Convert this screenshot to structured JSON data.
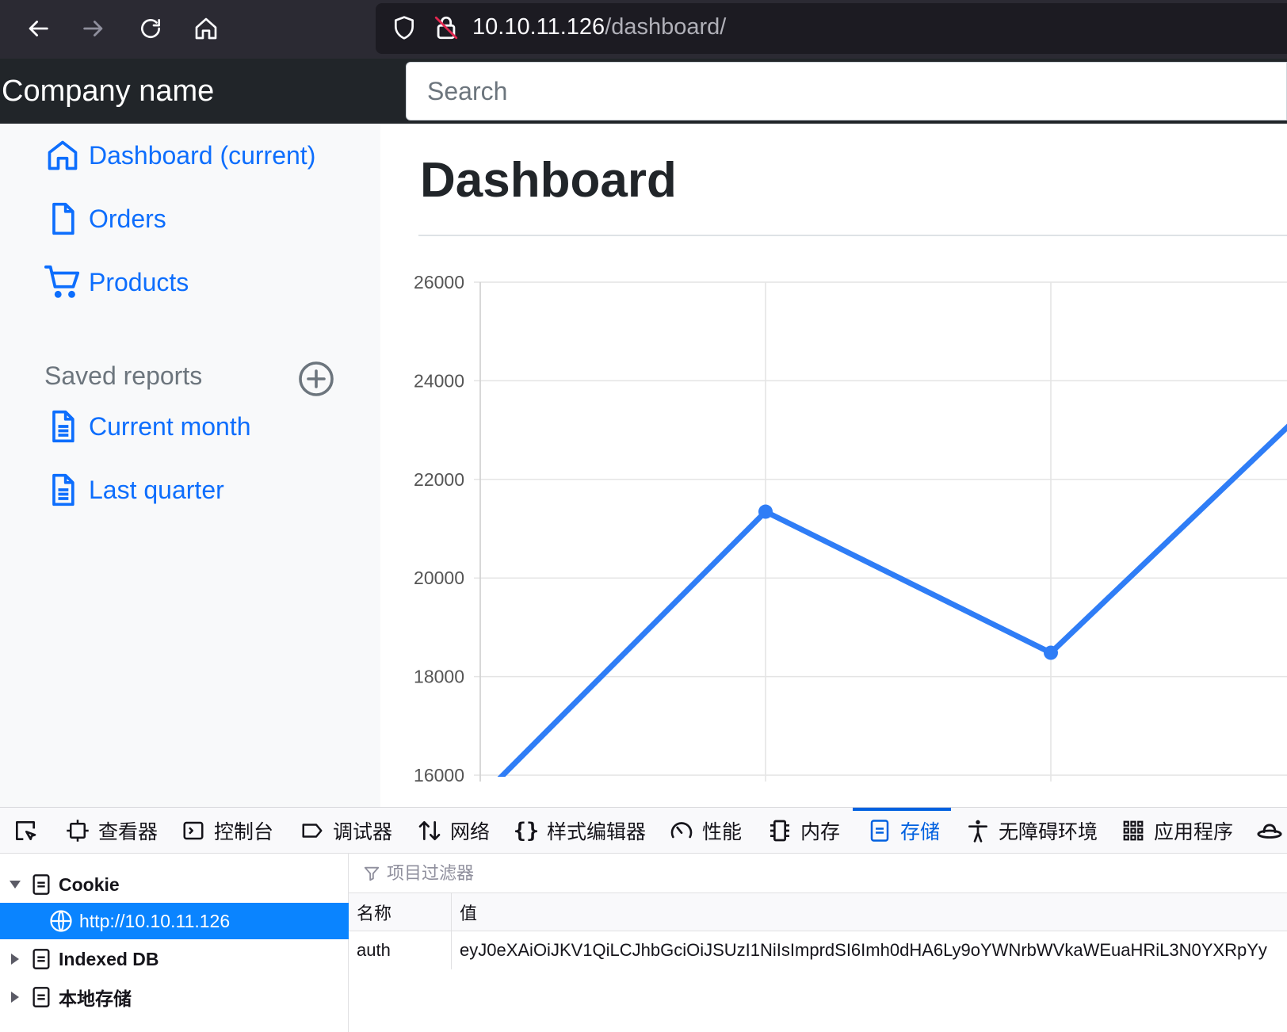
{
  "browser": {
    "url_host": "10.10.11.126",
    "url_path": "/dashboard/"
  },
  "header": {
    "brand": "Company name",
    "search_placeholder": "Search"
  },
  "sidebar": {
    "items": [
      {
        "label": "Dashboard (current)",
        "icon": "home-icon"
      },
      {
        "label": "Orders",
        "icon": "file-icon"
      },
      {
        "label": "Products",
        "icon": "shopping-cart-icon"
      }
    ],
    "saved_reports_heading": "Saved reports",
    "reports": [
      {
        "label": "Current month",
        "icon": "file-text-icon"
      },
      {
        "label": "Last quarter",
        "icon": "file-text-icon"
      }
    ]
  },
  "main": {
    "title": "Dashboard"
  },
  "chart_data": {
    "type": "line",
    "y_ticks": [
      "26000",
      "24000",
      "22000",
      "20000",
      "18000",
      "16000"
    ],
    "ylim": [
      16000,
      26000
    ],
    "x_index": [
      0,
      1,
      2,
      3
    ],
    "series": [
      {
        "color": "#2f7df6",
        "values": [
          15539,
          21345,
          18483,
          24003
        ]
      }
    ],
    "grid": true
  },
  "devtools": {
    "tabs": [
      {
        "label": "查看器",
        "icon": "inspector-icon"
      },
      {
        "label": "控制台",
        "icon": "console-icon"
      },
      {
        "label": "调试器",
        "icon": "debugger-icon"
      },
      {
        "label": "网络",
        "icon": "network-icon"
      },
      {
        "label": "样式编辑器",
        "icon": "style-editor-icon"
      },
      {
        "label": "性能",
        "icon": "performance-icon"
      },
      {
        "label": "内存",
        "icon": "memory-icon"
      },
      {
        "label": "存储",
        "icon": "storage-icon"
      },
      {
        "label": "无障碍环境",
        "icon": "accessibility-icon"
      },
      {
        "label": "应用程序",
        "icon": "application-icon"
      }
    ],
    "active_tab": "存储",
    "tree": {
      "cookie": "Cookie",
      "cookie_host": "http://10.10.11.126",
      "indexed_db": "Indexed DB",
      "local_storage": "本地存储"
    },
    "filter_placeholder": "项目过滤器",
    "table": {
      "col_name": "名称",
      "col_value": "值",
      "rows": [
        {
          "name": "auth",
          "value": "eyJ0eXAiOiJKV1QiLCJhbGciOiJSUzI1NiIsImprdSI6Imh0dHA6Ly9oYWNrbWVkaWEuaHRiL3N0YXRpYy"
        }
      ]
    }
  }
}
